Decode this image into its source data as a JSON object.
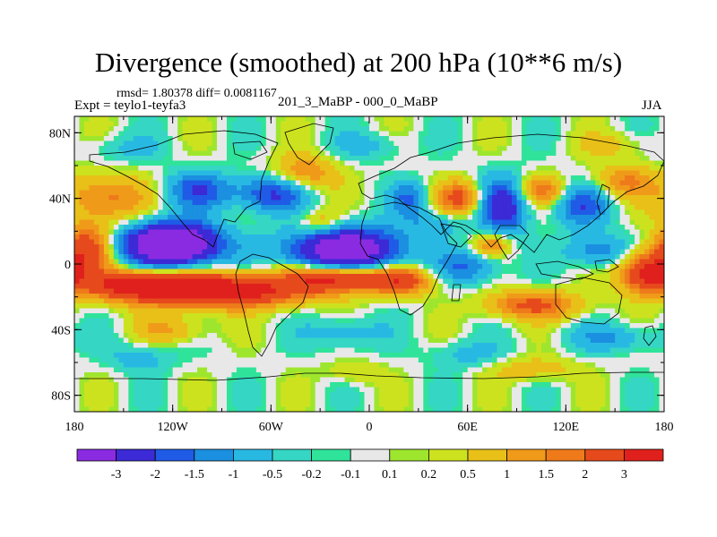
{
  "title": "Divergence (smoothed) at 200 hPa (10**6 m/s)",
  "stats": "rmsd= 1.80378  diff= 0.0081167",
  "subtitle": "201_3_MaBP - 000_0_MaBP",
  "experiment": "Expt = teylo1-teyfa3",
  "season": "JJA",
  "chart_data": {
    "type": "heatmap",
    "title": "Divergence (smoothed) at 200 hPa (10**6 m/s)",
    "x_range": [
      -180,
      180
    ],
    "y_range": [
      -90,
      90
    ],
    "x_ticks": [
      {
        "v": -180,
        "label": "180"
      },
      {
        "v": -120,
        "label": "120W"
      },
      {
        "v": -60,
        "label": "60W"
      },
      {
        "v": 0,
        "label": "0"
      },
      {
        "v": 60,
        "label": "60E"
      },
      {
        "v": 120,
        "label": "120E"
      },
      {
        "v": 180,
        "label": "180"
      }
    ],
    "y_ticks": [
      {
        "v": 80,
        "label": "80N"
      },
      {
        "v": 40,
        "label": "40N"
      },
      {
        "v": 0,
        "label": "0"
      },
      {
        "v": -40,
        "label": "40S"
      },
      {
        "v": -80,
        "label": "80S"
      }
    ],
    "colorbar": {
      "colors": [
        "#8a2be2",
        "#3b2ad6",
        "#1f5be6",
        "#1b8fe0",
        "#28b9e3",
        "#35d6c4",
        "#30e39a",
        "#e8e8e8",
        "#9ee62e",
        "#cde21e",
        "#e8c018",
        "#f09a1a",
        "#ee7a1a",
        "#e64a1c",
        "#e0201c"
      ],
      "labels": [
        "-3",
        "-2",
        "-1.5",
        "-1",
        "-0.5",
        "-0.2",
        "-0.1",
        "0.1",
        "0.2",
        "0.5",
        "1",
        "1.5",
        "2",
        "3"
      ]
    },
    "features": [
      {
        "lon": -120,
        "lat": 12,
        "v": -5.5,
        "sx": 20,
        "sy": 9
      },
      {
        "lon": -15,
        "lat": 8,
        "v": -4.5,
        "sx": 24,
        "sy": 10
      },
      {
        "lon": -60,
        "lat": 43,
        "v": -2.2,
        "sx": 16,
        "sy": 8
      },
      {
        "lon": -105,
        "lat": 45,
        "v": -1.8,
        "sx": 14,
        "sy": 8
      },
      {
        "lon": 82,
        "lat": 35,
        "v": -2.6,
        "sx": 10,
        "sy": 12
      },
      {
        "lon": 130,
        "lat": 36,
        "v": -1.8,
        "sx": 12,
        "sy": 9
      },
      {
        "lon": 25,
        "lat": 40,
        "v": -1.5,
        "sx": 8,
        "sy": 7
      },
      {
        "lon": 60,
        "lat": -2,
        "v": -1.5,
        "sx": 14,
        "sy": 7
      },
      {
        "lon": 140,
        "lat": 8,
        "v": -1.5,
        "sx": 14,
        "sy": 7
      },
      {
        "lon": 40,
        "lat": 25,
        "v": -0.9,
        "sx": 14,
        "sy": 6
      },
      {
        "lon": -95,
        "lat": -16,
        "v": 4.5,
        "sx": 38,
        "sy": 7
      },
      {
        "lon": -145,
        "lat": -12,
        "v": 2.5,
        "sx": 20,
        "sy": 6
      },
      {
        "lon": -20,
        "lat": -8,
        "v": 3.8,
        "sx": 20,
        "sy": 6
      },
      {
        "lon": 20,
        "lat": -10,
        "v": 2.5,
        "sx": 14,
        "sy": 6
      },
      {
        "lon": 170,
        "lat": -5,
        "v": 3.5,
        "sx": 12,
        "sy": 9
      },
      {
        "lon": 100,
        "lat": -25,
        "v": 2.2,
        "sx": 20,
        "sy": 6
      },
      {
        "lon": -172,
        "lat": 10,
        "v": 2.5,
        "sx": 10,
        "sy": 10
      },
      {
        "lon": -160,
        "lat": 40,
        "v": 1.8,
        "sx": 16,
        "sy": 10
      },
      {
        "lon": -40,
        "lat": 55,
        "v": 1.6,
        "sx": 14,
        "sy": 8
      },
      {
        "lon": 55,
        "lat": 40,
        "v": 2.2,
        "sx": 10,
        "sy": 7
      },
      {
        "lon": 105,
        "lat": 45,
        "v": 1.7,
        "sx": 10,
        "sy": 6
      },
      {
        "lon": 155,
        "lat": 50,
        "v": 1.5,
        "sx": 14,
        "sy": 7
      },
      {
        "lon": 75,
        "lat": 12,
        "v": 1.5,
        "sx": 8,
        "sy": 5
      },
      {
        "lon": -30,
        "lat": 25,
        "v": 1.2,
        "sx": 10,
        "sy": 6
      },
      {
        "lon": -120,
        "lat": -40,
        "v": 1.0,
        "sx": 16,
        "sy": 6
      },
      {
        "lon": 150,
        "lat": -45,
        "v": -1.0,
        "sx": 20,
        "sy": 6
      },
      {
        "lon": -15,
        "lat": -42,
        "v": -0.9,
        "sx": 16,
        "sy": 7
      },
      {
        "lon": -140,
        "lat": -57,
        "v": -0.8,
        "sx": 14,
        "sy": 6
      },
      {
        "lon": 60,
        "lat": -55,
        "v": -0.7,
        "sx": 16,
        "sy": 6
      },
      {
        "lon": 100,
        "lat": -64,
        "v": 0.9,
        "sx": 18,
        "sy": 5
      },
      {
        "lon": -10,
        "lat": -66,
        "v": 0.6,
        "sx": 12,
        "sy": 5
      },
      {
        "lon": 0,
        "lat": 72,
        "v": -0.7,
        "sx": 16,
        "sy": 6
      },
      {
        "lon": -150,
        "lat": 70,
        "v": -0.6,
        "sx": 16,
        "sy": 6
      },
      {
        "lon": 150,
        "lat": 72,
        "v": 0.6,
        "sx": 16,
        "sy": 6
      }
    ]
  }
}
